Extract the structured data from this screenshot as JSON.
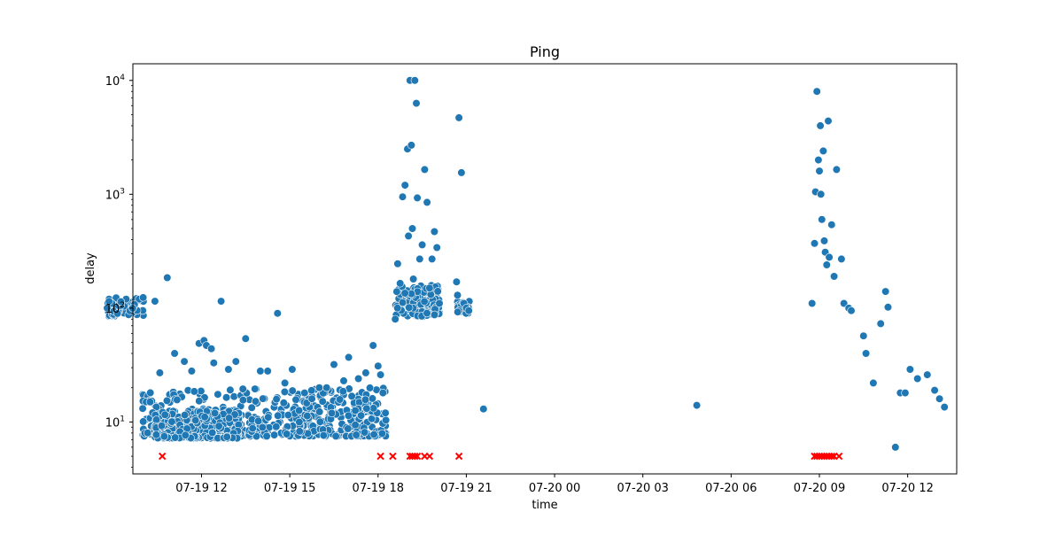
{
  "chart_data": {
    "type": "scatter",
    "title": "Ping",
    "xlabel": "time",
    "ylabel": "delay",
    "yscale": "log",
    "ylim": [
      3.5,
      14000
    ],
    "xlim": [
      "07-19 09:40",
      "07-20 13:40"
    ],
    "grid": false,
    "x_ticks": [
      "07-19 12",
      "07-19 15",
      "07-19 18",
      "07-19 21",
      "07-20 00",
      "07-20 03",
      "07-20 06",
      "07-20 09",
      "07-20 12"
    ],
    "y_ticks": [
      {
        "value": 10,
        "base": "10",
        "exp": "1"
      },
      {
        "value": 100,
        "base": "10",
        "exp": "2"
      },
      {
        "value": 1000,
        "base": "10",
        "exp": "3"
      },
      {
        "value": 10000,
        "base": "10",
        "exp": "4"
      }
    ],
    "series": [
      {
        "color": "#1f77b4",
        "marker": "circle",
        "points": [
          [
            "07-19 10:15",
            15.0
          ],
          [
            "07-19 10:25",
            115
          ],
          [
            "07-19 10:35",
            27
          ],
          [
            "07-19 10:50",
            185
          ],
          [
            "07-19 11:05",
            40
          ],
          [
            "07-19 11:25",
            34
          ],
          [
            "07-19 11:40",
            28
          ],
          [
            "07-19 11:55",
            49
          ],
          [
            "07-19 12:05",
            52
          ],
          [
            "07-19 12:10",
            47
          ],
          [
            "07-19 12:20",
            44
          ],
          [
            "07-19 12:25",
            33
          ],
          [
            "07-19 12:40",
            115
          ],
          [
            "07-19 12:55",
            29
          ],
          [
            "07-19 13:10",
            34
          ],
          [
            "07-19 13:30",
            54
          ],
          [
            "07-19 14:00",
            28
          ],
          [
            "07-19 14:15",
            28
          ],
          [
            "07-19 14:35",
            90
          ],
          [
            "07-19 14:50",
            22
          ],
          [
            "07-19 15:05",
            29
          ],
          [
            "07-19 15:30",
            18
          ],
          [
            "07-19 15:45",
            16
          ],
          [
            "07-19 16:00",
            20
          ],
          [
            "07-19 16:15",
            20
          ],
          [
            "07-19 16:30",
            32
          ],
          [
            "07-19 16:50",
            23
          ],
          [
            "07-19 17:00",
            37
          ],
          [
            "07-19 17:20",
            24
          ],
          [
            "07-19 17:35",
            27
          ],
          [
            "07-19 17:50",
            47
          ],
          [
            "07-19 18:00",
            31
          ],
          [
            "07-19 18:05",
            26
          ],
          [
            "07-19 18:10",
            18
          ],
          [
            "07-19 18:15",
            12
          ],
          [
            "07-19 18:35",
            80
          ],
          [
            "07-19 18:40",
            245
          ],
          [
            "07-19 18:45",
            165
          ],
          [
            "07-19 18:50",
            950
          ],
          [
            "07-19 18:55",
            1200
          ],
          [
            "07-19 19:00",
            2500
          ],
          [
            "07-19 19:02",
            430
          ],
          [
            "07-19 19:05",
            10000
          ],
          [
            "07-19 19:08",
            2700
          ],
          [
            "07-19 19:10",
            500
          ],
          [
            "07-19 19:12",
            180
          ],
          [
            "07-19 19:15",
            10000
          ],
          [
            "07-19 19:18",
            6300
          ],
          [
            "07-19 19:20",
            930
          ],
          [
            "07-19 19:25",
            270
          ],
          [
            "07-19 19:30",
            360
          ],
          [
            "07-19 19:35",
            1650
          ],
          [
            "07-19 19:40",
            850
          ],
          [
            "07-19 19:45",
            150
          ],
          [
            "07-19 19:50",
            270
          ],
          [
            "07-19 19:55",
            470
          ],
          [
            "07-19 20:00",
            340
          ],
          [
            "07-19 20:05",
            110
          ],
          [
            "07-19 20:40",
            170
          ],
          [
            "07-19 20:45",
            4700
          ],
          [
            "07-19 20:50",
            1550
          ],
          [
            "07-19 20:42",
            130
          ],
          [
            "07-19 20:55",
            110
          ],
          [
            "07-19 21:00",
            100
          ],
          [
            "07-19 21:05",
            95
          ],
          [
            "07-19 21:35",
            13
          ],
          [
            "07-20 04:50",
            14
          ],
          [
            "07-20 08:45",
            110
          ],
          [
            "07-20 08:50",
            370
          ],
          [
            "07-20 08:52",
            1050
          ],
          [
            "07-20 08:55",
            8000
          ],
          [
            "07-20 08:58",
            2000
          ],
          [
            "07-20 09:00",
            1600
          ],
          [
            "07-20 09:02",
            4000
          ],
          [
            "07-20 09:03",
            1000
          ],
          [
            "07-20 09:05",
            600
          ],
          [
            "07-20 09:08",
            2400
          ],
          [
            "07-20 09:10",
            390
          ],
          [
            "07-20 09:12",
            310
          ],
          [
            "07-20 09:15",
            240
          ],
          [
            "07-20 09:18",
            4400
          ],
          [
            "07-20 09:20",
            280
          ],
          [
            "07-20 09:25",
            540
          ],
          [
            "07-20 09:30",
            190
          ],
          [
            "07-20 09:35",
            1650
          ],
          [
            "07-20 09:45",
            270
          ],
          [
            "07-20 09:50",
            110
          ],
          [
            "07-20 10:00",
            100
          ],
          [
            "07-20 10:05",
            95
          ],
          [
            "07-20 10:30",
            57
          ],
          [
            "07-20 10:35",
            40
          ],
          [
            "07-20 10:50",
            22
          ],
          [
            "07-20 11:05",
            73
          ],
          [
            "07-20 11:15",
            140
          ],
          [
            "07-20 11:20",
            102
          ],
          [
            "07-20 11:35",
            6
          ],
          [
            "07-20 11:45",
            18
          ],
          [
            "07-20 11:55",
            18
          ],
          [
            "07-20 12:05",
            29
          ],
          [
            "07-20 12:20",
            24
          ],
          [
            "07-20 12:40",
            26
          ],
          [
            "07-20 12:55",
            19
          ],
          [
            "07-20 13:05",
            16
          ],
          [
            "07-20 13:15",
            13.5
          ]
        ]
      },
      {
        "color": "#ff0000",
        "marker": "x",
        "points": [
          [
            "07-19 10:40",
            5
          ],
          [
            "07-19 18:05",
            5
          ],
          [
            "07-19 18:30",
            5
          ],
          [
            "07-19 19:05",
            5
          ],
          [
            "07-19 19:10",
            5
          ],
          [
            "07-19 19:15",
            5
          ],
          [
            "07-19 19:20",
            5
          ],
          [
            "07-19 19:35",
            5
          ],
          [
            "07-19 19:45",
            5
          ],
          [
            "07-19 20:45",
            5
          ],
          [
            "07-20 08:50",
            5
          ],
          [
            "07-20 08:55",
            5
          ],
          [
            "07-20 09:00",
            5
          ],
          [
            "07-20 09:05",
            5
          ],
          [
            "07-20 09:10",
            5
          ],
          [
            "07-20 09:15",
            5
          ],
          [
            "07-20 09:20",
            5
          ],
          [
            "07-20 09:25",
            5
          ],
          [
            "07-20 09:30",
            5
          ],
          [
            "07-20 09:40",
            5
          ]
        ]
      }
    ]
  }
}
